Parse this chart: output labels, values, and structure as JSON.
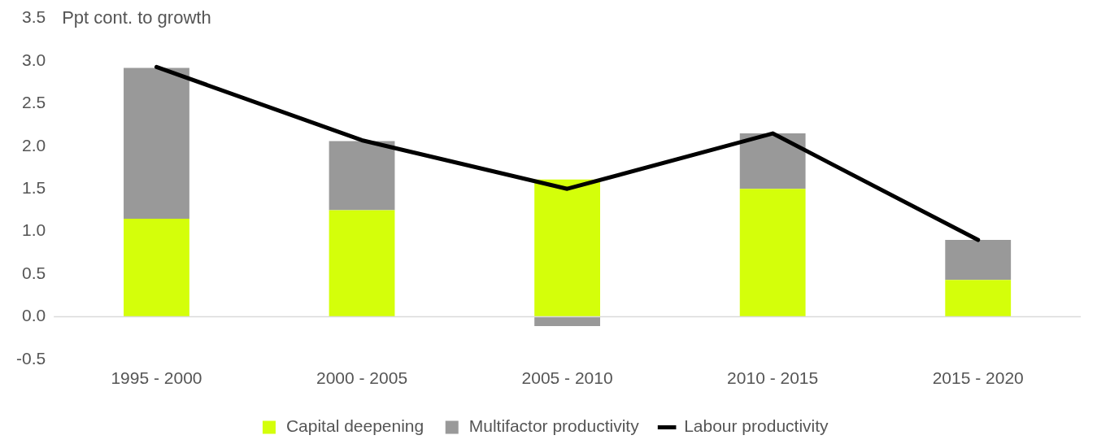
{
  "chart_data": {
    "type": "bar",
    "ylabel": "Ppt cont. to growth",
    "categories": [
      "1995 - 2000",
      "2000 - 2005",
      "2005 - 2010",
      "2010 - 2015",
      "2015 - 2020"
    ],
    "stacked": true,
    "legend": "bottom",
    "ref_lines": [
      {
        "axis": "y",
        "value": 0,
        "color": "#d9d9d9"
      }
    ],
    "ylim": [
      -0.5,
      3.5
    ],
    "yticks": [
      {
        "value": -0.5,
        "label": "-0.5"
      },
      {
        "value": 0,
        "label": "0.0"
      },
      {
        "value": 0.5,
        "label": "0.5"
      },
      {
        "value": 1,
        "label": "1.0"
      },
      {
        "value": 1.5,
        "label": "1.5"
      },
      {
        "value": 2,
        "label": "2.0"
      },
      {
        "value": 2.5,
        "label": "2.5"
      },
      {
        "value": 3,
        "label": "3.0"
      },
      {
        "value": 3.5,
        "label": "3.5"
      }
    ],
    "series": [
      {
        "name": "Capital deepening",
        "color": "#d4ff0a",
        "values": [
          1.15,
          1.25,
          1.61,
          1.5,
          0.43
        ]
      },
      {
        "name": "Multifactor productivity",
        "color": "#999999",
        "values": [
          1.77,
          0.81,
          -0.11,
          0.65,
          0.47
        ]
      },
      {
        "name": "Labour productivity",
        "type": "line",
        "color": "#000000",
        "marker": "none",
        "values": [
          2.93,
          2.07,
          1.5,
          2.15,
          0.9
        ]
      }
    ]
  }
}
